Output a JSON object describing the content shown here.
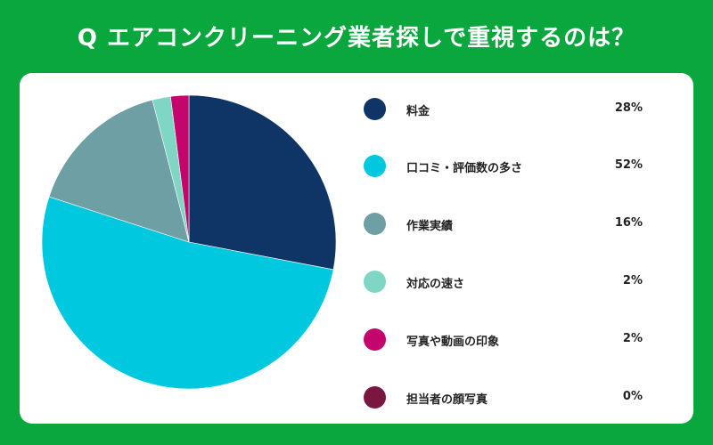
{
  "title": "Q エアコンクリーニング業者探しで重視するのは？",
  "colors": {
    "background": "#0aa73f",
    "panel": "#ffffff"
  },
  "chart_data": {
    "type": "pie",
    "title": "Q エアコンクリーニング業者探しで重視するのは？",
    "legend_position": "right",
    "slices": [
      {
        "label": "料金",
        "value": 28,
        "display": "28%",
        "color": "#0e3566"
      },
      {
        "label": "口コミ・評価数の多さ",
        "value": 52,
        "display": "52%",
        "color": "#00c8df"
      },
      {
        "label": "作業実績",
        "value": 16,
        "display": "16%",
        "color": "#6e9fa5"
      },
      {
        "label": "対応の速さ",
        "value": 2,
        "display": "2%",
        "color": "#7fd6c4"
      },
      {
        "label": "写真や動画の印象",
        "value": 2,
        "display": "2%",
        "color": "#c4056d"
      },
      {
        "label": "担当者の顔写真",
        "value": 0,
        "display": "0%",
        "color": "#7a1740"
      }
    ]
  }
}
